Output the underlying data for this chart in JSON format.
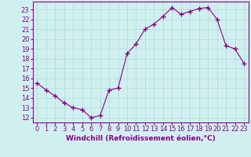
{
  "x": [
    0,
    1,
    2,
    3,
    4,
    5,
    6,
    7,
    8,
    9,
    10,
    11,
    12,
    13,
    14,
    15,
    16,
    17,
    18,
    19,
    20,
    21,
    22,
    23
  ],
  "y": [
    15.5,
    14.8,
    14.2,
    13.5,
    13.0,
    12.8,
    12.0,
    12.2,
    14.8,
    15.0,
    18.5,
    19.5,
    21.0,
    21.5,
    22.3,
    23.2,
    22.5,
    22.8,
    23.1,
    23.2,
    22.0,
    19.3,
    19.0,
    17.5
  ],
  "line_color": "#880088",
  "marker": "+",
  "marker_size": 4,
  "bg_color": "#d0f0f0",
  "grid_color": "#b0d8d8",
  "xlabel": "Windchill (Refroidissement éolien,°C)",
  "xlabel_color": "#880088",
  "xlabel_fontsize": 6.5,
  "yticks": [
    12,
    13,
    14,
    15,
    16,
    17,
    18,
    19,
    20,
    21,
    22,
    23
  ],
  "xticks": [
    0,
    1,
    2,
    3,
    4,
    5,
    6,
    7,
    8,
    9,
    10,
    11,
    12,
    13,
    14,
    15,
    16,
    17,
    18,
    19,
    20,
    21,
    22,
    23
  ],
  "ylim": [
    11.5,
    23.8
  ],
  "xlim": [
    -0.5,
    23.5
  ],
  "tick_color": "#880088",
  "tick_fontsize": 6,
  "spine_color": "#880088"
}
